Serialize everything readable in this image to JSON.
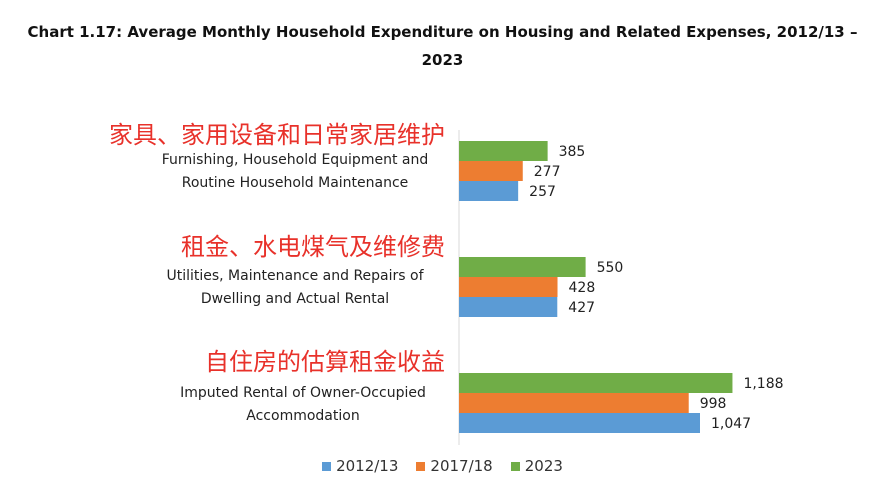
{
  "chart_data": {
    "type": "bar",
    "orientation": "horizontal",
    "title": "Chart 1.17: Average Monthly Household Expenditure on Housing and Related Expenses, 2012/13 – 2023",
    "categories": [
      {
        "label_cn": "家具、家用设备和日常家居维护",
        "label_en": "Furnishing, Household Equipment and Routine Household Maintenance"
      },
      {
        "label_cn": "租金、水电煤气及维修费",
        "label_en": "Utilities, Maintenance and Repairs of Dwelling and Actual Rental"
      },
      {
        "label_cn": "自住房的估算租金收益",
        "label_en": "Imputed Rental of Owner-Occupied Accommodation"
      }
    ],
    "series": [
      {
        "name": "2023",
        "color": "#70ad47",
        "values": [
          385,
          550,
          1188
        ],
        "labels": [
          "385",
          "550",
          "1,188"
        ]
      },
      {
        "name": "2017/18",
        "color": "#ed7d31",
        "values": [
          277,
          428,
          998
        ],
        "labels": [
          "277",
          "428",
          "998"
        ]
      },
      {
        "name": "2012/13",
        "color": "#5b9bd5",
        "values": [
          257,
          427,
          1047
        ],
        "labels": [
          "257",
          "427",
          "1,047"
        ]
      }
    ],
    "legend": {
      "position": "bottom",
      "order": [
        "2012/13",
        "2017/18",
        "2023"
      ]
    },
    "xlim": [
      0,
      1300
    ],
    "grid": false
  }
}
